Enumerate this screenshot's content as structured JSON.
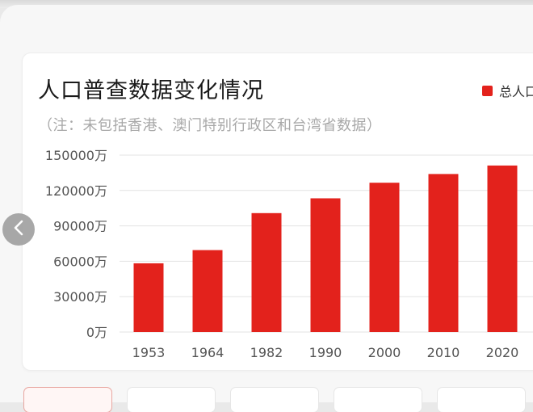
{
  "chart_data": {
    "type": "bar",
    "title": "人口普查数据变化情况",
    "subtitle": "（注：未包括香港、澳门特别行政区和台湾省数据）",
    "categories": [
      "1953",
      "1964",
      "1982",
      "1990",
      "2000",
      "2010",
      "2020"
    ],
    "series": [
      {
        "name": "总人口",
        "color": "#e3221c",
        "values": [
          58260,
          69458,
          100818,
          113368,
          126583,
          133972,
          141178
        ]
      }
    ],
    "ylim": [
      0,
      150000
    ],
    "yticks": [
      0,
      30000,
      60000,
      90000,
      120000,
      150000
    ],
    "ytick_labels": [
      "0万",
      "30000万",
      "60000万",
      "90000万",
      "120000万",
      "150000万"
    ],
    "grid": true,
    "legend": "top-right",
    "legend_label_visible": "总人口"
  },
  "colors": {
    "bar": "#e3221c",
    "grid": "#e3e3e3",
    "axis_text": "#555555",
    "title": "#1a1a1a",
    "note": "#a8a8a8"
  },
  "ui": {
    "prev_icon": "chevron-left-icon"
  }
}
